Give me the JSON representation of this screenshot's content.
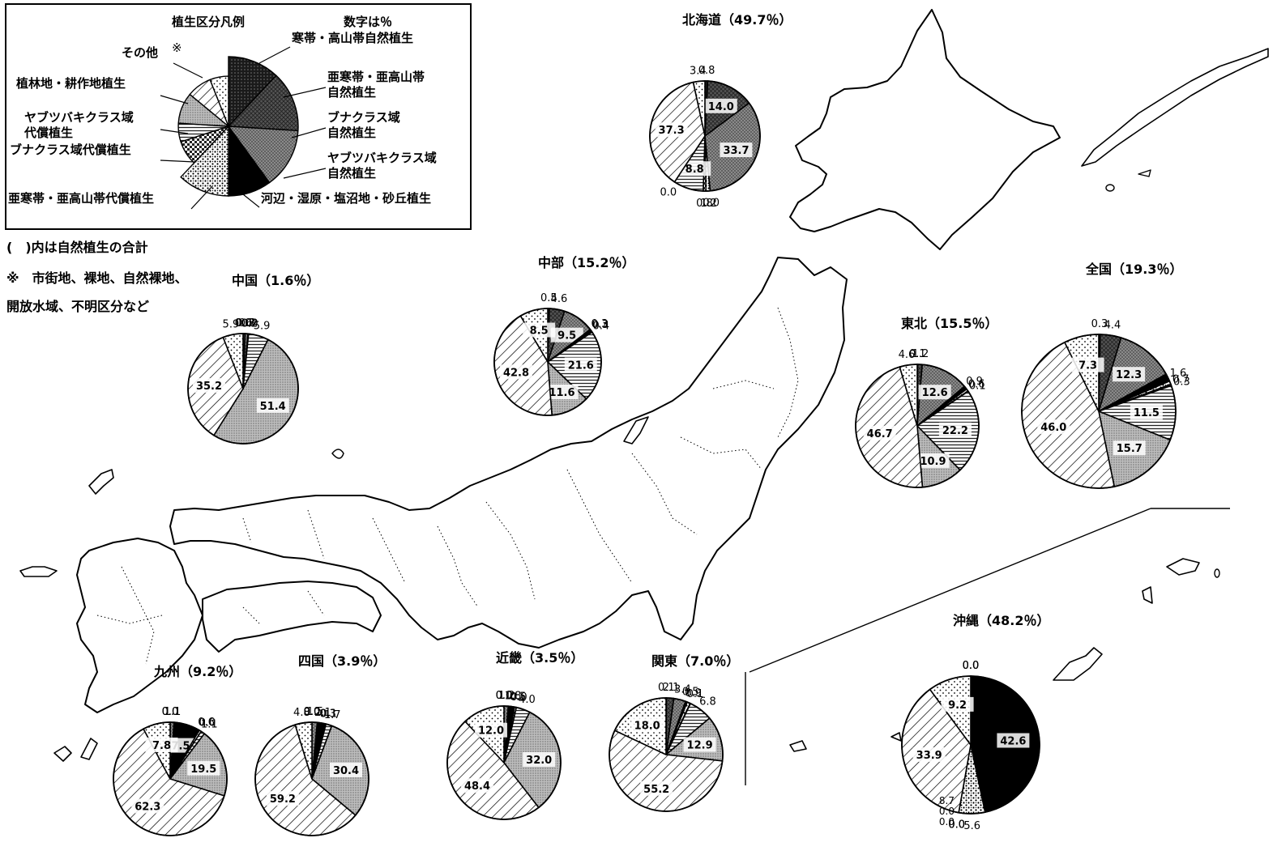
{
  "legend": {
    "title": "植生区分凡例",
    "unit_note": "数字は％",
    "kome": "※",
    "categories": [
      "寒帯・高山帯自然植生",
      "亜寒帯・亜高山帯\n自然植生",
      "ブナクラス域\n自然植生",
      "ヤブツバキクラス域\n自然植生",
      "河辺・湿原・塩沼地・砂丘植生",
      "亜寒帯・亜高山帯代償植生",
      "ブナクラス域代償植生",
      "ヤブツバキクラス域\n代償植生",
      "植林地・耕作地植生",
      "その他"
    ]
  },
  "notes": {
    "line1": "(　)内は自然植生の合計",
    "line2": "※　市街地、裸地、自然裸地、",
    "line3": "開放水域、不明区分など"
  },
  "colors": {
    "ink": "#000000",
    "paper": "#ffffff",
    "map_line": "#000000"
  },
  "chart_data": [
    {
      "type": "pie",
      "title": "北海道（49.7％）",
      "categories": [
        "寒帯・高山帯自然植生",
        "亜寒帯・亜高山帯自然植生",
        "ブナクラス域自然植生",
        "ヤブツバキクラス域自然植生",
        "河辺・湿原・塩沼地・砂丘植生",
        "亜寒帯・亜高山帯代償植生",
        "ブナクラス域代償植生",
        "ヤブツバキクラス域代償植生",
        "植林地・耕作地植生",
        "その他"
      ],
      "values": [
        0.8,
        14.0,
        33.7,
        0.0,
        1.2,
        0.8,
        8.8,
        0.0,
        37.3,
        3.4
      ],
      "value_labels": [
        "0.8",
        "14.0",
        "33.7",
        "0.0",
        "1.2",
        "0.8",
        "8.8",
        "0.0",
        "37.3",
        "3.4"
      ]
    },
    {
      "type": "pie",
      "title": "中部（15.2％）",
      "values": [
        0.5,
        4.6,
        9.5,
        0.3,
        0.3,
        0.4,
        21.6,
        11.6,
        42.8,
        8.5
      ],
      "value_labels": [
        "0.5",
        "4.6",
        "9.5",
        "0.3",
        "0.3",
        "0.4",
        "21.6",
        "11.6",
        "42.8",
        "8.5"
      ]
    },
    {
      "type": "pie",
      "title": "中国（1.6％）",
      "values": [
        0.0,
        0.6,
        0.8,
        0.2,
        0.0,
        0.0,
        5.9,
        51.4,
        35.2,
        5.9
      ],
      "value_labels": [
        "0.0",
        "0.6",
        "0.8",
        "0.2",
        "0.0",
        "0.0",
        "5.9",
        "51.4",
        "35.2",
        "5.9"
      ]
    },
    {
      "type": "pie",
      "title": "東北（15.5％）",
      "values": [
        0.1,
        1.2,
        12.6,
        0.9,
        0.6,
        0.1,
        22.2,
        10.9,
        46.7,
        4.6
      ],
      "value_labels": [
        "0.1",
        "1.2",
        "12.6",
        "0.9",
        "0.6",
        "0.1",
        "22.2",
        "10.9",
        "46.7",
        "4.6"
      ]
    },
    {
      "type": "pie",
      "title": "全国（19.3％）",
      "values": [
        0.3,
        4.4,
        12.3,
        1.6,
        0.7,
        0.3,
        11.5,
        15.7,
        46.0,
        7.3
      ],
      "value_labels": [
        "0.3",
        "4.4",
        "12.3",
        "1.6",
        "0.7",
        "0.3",
        "11.5",
        "15.7",
        "46.0",
        "7.3"
      ]
    },
    {
      "type": "pie",
      "title": "九州（9.2％）",
      "values": [
        0.0,
        0.0,
        1.1,
        7.5,
        0.6,
        0.0,
        1.1,
        19.5,
        62.3,
        7.8
      ],
      "value_labels": [
        "0.0",
        "0.0",
        "1.1",
        "7.5",
        "0.6",
        "0.0",
        "1.1",
        "19.5",
        "62.3",
        "7.8"
      ]
    },
    {
      "type": "pie",
      "title": "四国（3.9％）",
      "values": [
        0.0,
        0.0,
        1.5,
        2.1,
        0.3,
        0.1,
        1.7,
        30.4,
        59.2,
        4.8
      ],
      "value_labels": [
        "0.0",
        "0.0",
        "1.5",
        "2.1",
        "0.3",
        "0.1",
        "1.7",
        "30.4",
        "59.2",
        "4.8"
      ]
    },
    {
      "type": "pie",
      "title": "近畿（3.5％）",
      "values": [
        0.0,
        0.0,
        1.2,
        1.8,
        0.5,
        0.0,
        4.0,
        32.0,
        48.4,
        12.0
      ],
      "value_labels": [
        "0.0",
        "0.0",
        "1.2",
        "1.8",
        "0.5",
        "0.0",
        "4.0",
        "32.0",
        "48.4",
        "12.0"
      ]
    },
    {
      "type": "pie",
      "title": "関東（7.0％）",
      "values": [
        0.1,
        2.1,
        3.4,
        0.5,
        0.9,
        0.1,
        6.8,
        12.9,
        55.2,
        18.0
      ],
      "value_labels": [
        "0.1",
        "2.1",
        "3.4",
        "0.5",
        "0.9",
        "0.1",
        "6.8",
        "12.9",
        "55.2",
        "18.0"
      ]
    },
    {
      "type": "pie",
      "title": "沖縄（48.2％）",
      "values": [
        0.0,
        0.0,
        0.0,
        42.6,
        5.6,
        0.0,
        0.0,
        0.0,
        33.9,
        9.2
      ],
      "value_labels": [
        "0.0",
        "0.0",
        "0.0",
        "42.6",
        "5.6",
        "0.0",
        "0.0",
        "0.0",
        "33.9",
        "9.2"
      ],
      "extra_labels": [
        "8.7",
        "0.0",
        "0.0"
      ]
    }
  ]
}
